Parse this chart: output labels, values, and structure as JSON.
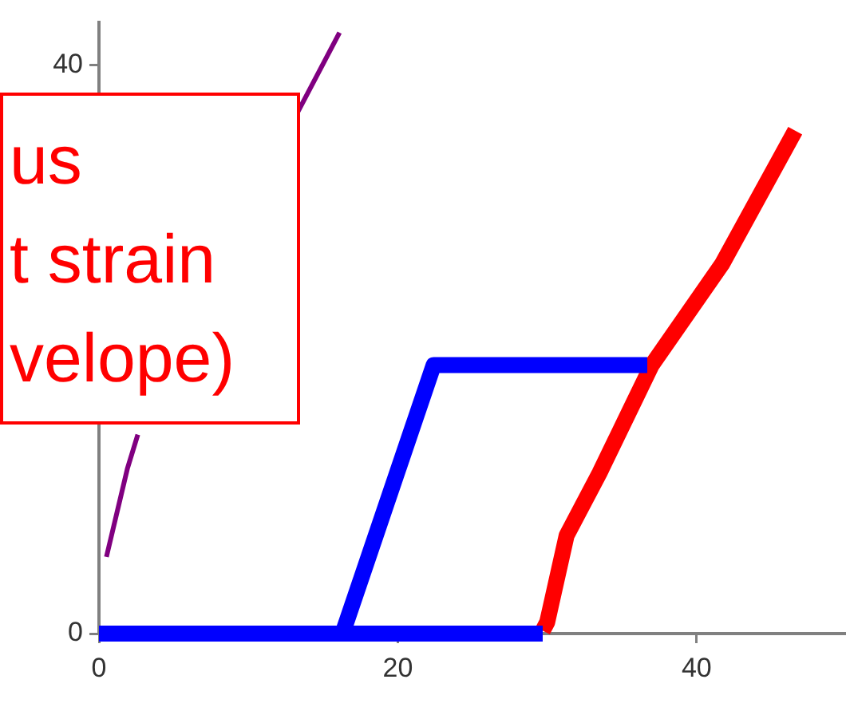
{
  "chart_data": {
    "type": "line",
    "annotations": [
      "us",
      "t strain",
      "velope)"
    ],
    "xlim": [
      0,
      50
    ],
    "xticks": [
      0,
      20,
      40
    ],
    "ylim": [
      0,
      43
    ],
    "yticks": [
      0,
      40
    ],
    "grid": false,
    "legend": false,
    "marker": "none",
    "line_style": "solid",
    "series": [
      {
        "color": "#800080",
        "x": [
          0.5,
          1.9,
          2.6,
          8,
          13.3,
          16.1
        ],
        "values": [
          5.4,
          11.6,
          14,
          null,
          36.7,
          42.3
        ]
      },
      {
        "color": "#0000ff",
        "x": [
          0,
          29.7
        ],
        "values": [
          0,
          0
        ]
      },
      {
        "color": "#0000ff",
        "x": [
          16.3,
          22.4,
          36.7
        ],
        "values": [
          0,
          18.9,
          18.9
        ]
      },
      {
        "color": "#ff0000",
        "x": [
          29.7,
          30,
          31.3,
          33.5,
          37,
          41.7,
          46.6
        ],
        "values": [
          0.2,
          0.8,
          6.9,
          11.3,
          18.9,
          26,
          35.4
        ]
      }
    ]
  }
}
